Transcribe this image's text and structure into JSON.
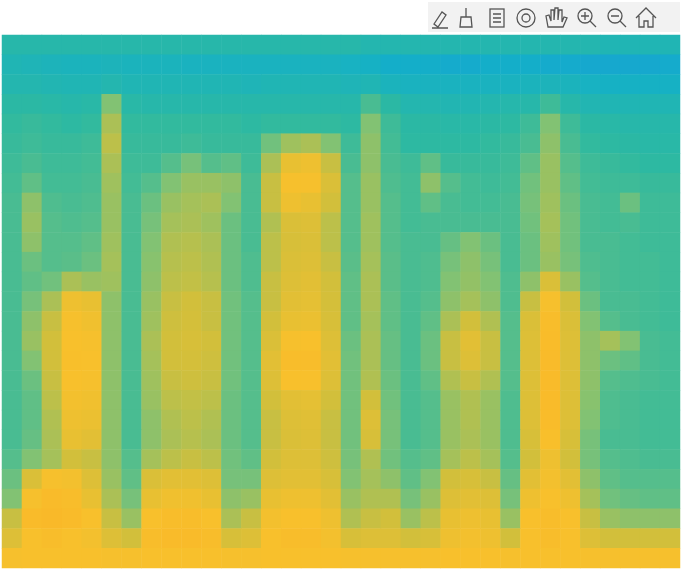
{
  "chart_data": {
    "type": "heatmap",
    "tick_labels": false,
    "clim": [
      0,
      10
    ],
    "cells": [
      [
        4,
        4,
        4,
        4,
        4,
        4,
        4,
        4,
        4,
        4,
        4,
        4,
        4,
        4,
        4,
        4,
        4,
        4,
        3.8,
        3.8,
        3.8,
        3.8,
        3.8,
        3.8,
        3.8,
        3.8,
        3.8,
        3.8,
        3.8,
        3.8,
        3.6,
        3.6,
        3.6,
        3.6
      ],
      [
        3.6,
        3.5,
        3.4,
        3.3,
        3.3,
        3.4,
        3.3,
        3.3,
        3.3,
        3.2,
        3.2,
        3.2,
        3.2,
        3.2,
        3.2,
        3.2,
        3.2,
        3.1,
        3,
        2.8,
        2.8,
        2.8,
        2.7,
        2.7,
        2.8,
        2.8,
        2.8,
        2.7,
        2.7,
        2.6,
        2.6,
        2.6,
        2.6,
        2.7
      ],
      [
        3.8,
        3.8,
        3.7,
        3.6,
        3.6,
        3.8,
        3.6,
        3.6,
        3.6,
        3.6,
        3.6,
        3.6,
        3.5,
        3.6,
        3.6,
        3.6,
        3.6,
        3.5,
        3.6,
        3.3,
        3.2,
        3.2,
        3.2,
        3.2,
        3.2,
        3.2,
        3.3,
        3.4,
        3.3,
        3.1,
        3,
        3,
        3,
        3
      ],
      [
        4.2,
        4.2,
        4.1,
        4,
        4.1,
        5.8,
        4.1,
        4,
        4,
        4,
        4,
        4,
        4,
        4,
        4,
        4,
        4,
        4,
        4.8,
        4.2,
        3.8,
        3.8,
        3.7,
        3.7,
        3.8,
        3.9,
        4,
        4.6,
        4,
        3.7,
        3.6,
        3.6,
        3.6,
        3.6
      ],
      [
        4.4,
        4.5,
        4.4,
        4.3,
        4.4,
        6.5,
        4.4,
        4.4,
        4.4,
        4.4,
        4.4,
        4.4,
        4.3,
        4.4,
        4.4,
        4.4,
        4.4,
        4.3,
        5.8,
        4.6,
        4.2,
        4.2,
        4.1,
        4.1,
        4.2,
        4.3,
        4.6,
        5.8,
        4.6,
        4.2,
        4.1,
        4,
        4,
        4
      ],
      [
        4.5,
        4.6,
        4.5,
        4.5,
        4.6,
        6.8,
        4.5,
        4.5,
        4.5,
        4.6,
        4.5,
        4.5,
        4.5,
        5.5,
        6.3,
        6.5,
        5.8,
        4.6,
        6,
        4.7,
        4.3,
        4.3,
        4.3,
        4.3,
        4.4,
        4.5,
        4.8,
        6,
        4.8,
        4.4,
        4.3,
        4.2,
        4.1,
        4.1
      ],
      [
        4.6,
        4.8,
        4.6,
        4.6,
        4.7,
        6.5,
        4.6,
        4.6,
        5,
        5.6,
        5,
        5.2,
        4.6,
        6.5,
        8,
        8.2,
        7,
        4.8,
        6,
        4.8,
        4.6,
        5.2,
        4.5,
        4.5,
        4.5,
        4.6,
        5.2,
        6.2,
        5,
        4.6,
        4.5,
        4.4,
        4.3,
        4.3
      ],
      [
        4.7,
        5.2,
        4.7,
        4.7,
        4.8,
        6.3,
        4.7,
        5,
        5.8,
        6.2,
        6.2,
        6,
        4.8,
        7,
        8.5,
        8.5,
        7.5,
        5,
        6.2,
        4.9,
        4.7,
        6,
        5,
        4.7,
        4.6,
        4.7,
        5.5,
        6.2,
        5.2,
        4.7,
        4.6,
        4.6,
        4.5,
        4.5
      ],
      [
        4.8,
        6,
        4.9,
        4.8,
        4.9,
        6.2,
        4.8,
        5.4,
        6.2,
        6.4,
        6.5,
        5.8,
        4.8,
        7,
        8.2,
        8,
        7.2,
        5,
        6.2,
        5,
        4.7,
        5.2,
        4.8,
        4.7,
        4.7,
        4.8,
        5.6,
        6.3,
        5.4,
        4.8,
        4.7,
        5.4,
        4.6,
        4.6
      ],
      [
        4.8,
        6.2,
        5,
        4.9,
        5,
        6.2,
        4.8,
        5.6,
        6.4,
        6.5,
        6.3,
        5.4,
        4.8,
        6.6,
        7.5,
        7.6,
        6.8,
        5,
        6.3,
        5,
        4.7,
        4.8,
        4.8,
        4.8,
        4.8,
        4.8,
        5.5,
        6.4,
        5.5,
        4.8,
        4.7,
        4.8,
        4.6,
        4.6
      ],
      [
        4.8,
        6,
        5,
        5,
        5.2,
        6.3,
        4.8,
        5.8,
        6.6,
        6.7,
        6.5,
        5.4,
        4.8,
        6.8,
        7.4,
        7.5,
        6.8,
        5,
        6.3,
        5,
        4.8,
        4.8,
        5.3,
        5.8,
        5.4,
        4.8,
        5.4,
        6.3,
        5.5,
        4.8,
        4.8,
        4.7,
        4.6,
        4.6
      ],
      [
        4.8,
        5.4,
        5,
        5.1,
        5.4,
        6.4,
        4.8,
        5.9,
        6.7,
        6.8,
        6.6,
        5.4,
        4.9,
        6.8,
        7.5,
        7.6,
        7,
        5.1,
        6.4,
        5.1,
        4.8,
        4.9,
        5.6,
        6,
        5.6,
        4.8,
        5.4,
        6.2,
        5.6,
        4.9,
        4.8,
        4.7,
        4.7,
        4.6
      ],
      [
        4.8,
        5.2,
        5.5,
        6.5,
        6.2,
        6.3,
        4.8,
        6,
        6.8,
        6.9,
        6.7,
        5.4,
        4.9,
        7,
        7.6,
        7.8,
        7.2,
        5.2,
        6.5,
        5.1,
        4.8,
        4.9,
        5.8,
        6.1,
        5.8,
        4.9,
        6,
        7.5,
        6.2,
        5,
        4.8,
        4.7,
        4.7,
        4.6
      ],
      [
        4.8,
        5.6,
        6.5,
        8.2,
        8,
        6,
        4.8,
        6.2,
        7,
        7.2,
        7,
        5.5,
        5,
        7,
        7.8,
        7.9,
        7.3,
        5.2,
        6.5,
        5.2,
        4.8,
        5,
        6,
        6.4,
        6,
        4.9,
        7,
        8.5,
        7.2,
        5.4,
        4.8,
        4.8,
        4.7,
        4.6
      ],
      [
        4.8,
        6,
        7,
        8.5,
        8.3,
        6,
        4.8,
        6.3,
        7.1,
        7.3,
        7,
        5.5,
        5,
        7.2,
        8,
        8.1,
        7.4,
        5.2,
        6.4,
        5.2,
        4.8,
        5.2,
        6.5,
        7.2,
        6.6,
        5,
        7.5,
        8.8,
        7.5,
        5.8,
        5,
        4.8,
        4.7,
        4.6
      ],
      [
        4.8,
        6.2,
        7.2,
        8.6,
        8.5,
        6,
        4.8,
        6.5,
        7.2,
        7.4,
        7.2,
        5.5,
        5,
        7.5,
        8.5,
        8.6,
        7.6,
        5.4,
        6.5,
        5.3,
        4.8,
        5.4,
        7,
        7.8,
        7,
        5,
        7.6,
        8.9,
        7.6,
        6,
        6.4,
        5.8,
        4.8,
        4.7
      ],
      [
        4.8,
        5.8,
        7.2,
        8.7,
        8.6,
        6,
        4.8,
        6.4,
        7.2,
        7.3,
        7.1,
        5.5,
        5,
        7.8,
        8.8,
        8.8,
        7.8,
        5.5,
        6.5,
        5.3,
        4.8,
        5.4,
        7,
        7.6,
        7,
        5,
        7.6,
        9,
        7.6,
        6,
        5.4,
        5.2,
        4.8,
        4.7
      ],
      [
        4.8,
        5.4,
        7,
        8.6,
        8.5,
        6,
        4.8,
        6.3,
        7,
        7.1,
        7,
        5.5,
        5,
        7.6,
        8.6,
        8.6,
        7.6,
        5.5,
        6.6,
        5.4,
        4.8,
        5.2,
        6.6,
        7,
        6.6,
        5,
        7.6,
        9,
        7.6,
        6,
        5,
        4.9,
        4.8,
        4.7
      ],
      [
        4.8,
        5.2,
        6.8,
        8.4,
        8.3,
        6,
        4.8,
        6.2,
        6.8,
        6.9,
        6.8,
        5.4,
        5,
        7.2,
        7.8,
        7.9,
        7.2,
        5.5,
        7.2,
        5.5,
        4.8,
        5,
        6.2,
        6.6,
        6.2,
        4.9,
        7.6,
        9,
        7.6,
        5.9,
        4.9,
        4.8,
        4.7,
        4.7
      ],
      [
        4.8,
        5.2,
        6.6,
        8.2,
        8.1,
        6,
        4.8,
        6,
        6.6,
        6.8,
        6.6,
        5.4,
        5,
        7,
        7.6,
        7.7,
        7,
        5.5,
        7.6,
        5.6,
        4.8,
        5,
        6.2,
        6.6,
        6.2,
        4.9,
        7.6,
        8.9,
        7.6,
        5.8,
        4.9,
        4.8,
        4.7,
        4.7
      ],
      [
        4.8,
        5.3,
        6.5,
        8,
        7.8,
        6,
        4.8,
        6,
        6.5,
        6.7,
        6.5,
        5.4,
        5,
        7,
        7.5,
        7.6,
        7,
        5.5,
        7.4,
        5.6,
        4.8,
        5,
        6.2,
        6.5,
        6.2,
        4.9,
        7.4,
        8.7,
        7.4,
        5.6,
        4.8,
        4.8,
        4.7,
        4.7
      ],
      [
        5,
        5.8,
        6.4,
        7.2,
        7,
        6,
        5,
        6.4,
        6.8,
        7,
        6.8,
        5.5,
        5.2,
        7.2,
        7.6,
        7.6,
        7.1,
        5.6,
        6.6,
        5.5,
        5,
        5.2,
        6.4,
        6.8,
        6.4,
        5,
        7.2,
        8.2,
        7.2,
        5.6,
        5,
        4.9,
        4.8,
        4.8
      ],
      [
        5.4,
        7.5,
        8.5,
        8.4,
        7.6,
        6.2,
        5.2,
        7.5,
        7.8,
        7.8,
        7.6,
        5.6,
        5.6,
        7.6,
        7.8,
        7.8,
        7.4,
        5.8,
        6.4,
        6,
        5.2,
        5.8,
        7.2,
        7.4,
        7,
        5.3,
        7.8,
        8.4,
        7.8,
        6,
        5.2,
        5,
        5,
        5
      ],
      [
        5.8,
        8.5,
        9,
        8.8,
        8,
        6.5,
        5.6,
        8,
        8.3,
        8.3,
        8,
        6,
        6.2,
        8,
        8.2,
        8.2,
        7.8,
        6.2,
        6.6,
        6.6,
        5.6,
        6.2,
        7.6,
        7.8,
        7.6,
        5.6,
        8.2,
        8.6,
        8.2,
        6.4,
        5.5,
        5.3,
        5.2,
        5.2
      ],
      [
        7,
        9,
        9.2,
        9,
        8.6,
        7,
        6.2,
        8.6,
        8.8,
        8.8,
        8.6,
        6.5,
        7,
        8.4,
        8.6,
        8.6,
        8.2,
        6.6,
        7,
        7.2,
        6.2,
        6.8,
        8,
        8.2,
        8,
        6.2,
        8.6,
        8.8,
        8.6,
        7,
        6.2,
        6,
        6,
        6
      ],
      [
        7.6,
        8.6,
        8.8,
        8.6,
        8.4,
        7.6,
        7.2,
        8.8,
        9,
        9,
        8.8,
        7.4,
        7.6,
        8.6,
        8.8,
        8.8,
        8.4,
        7.4,
        7.6,
        7.6,
        7.2,
        7.4,
        8.2,
        8.4,
        8.2,
        7.2,
        8.6,
        8.8,
        8.6,
        7.6,
        7.2,
        7.2,
        7.2,
        7.2
      ],
      [
        8.5,
        8.6,
        8.6,
        8.6,
        8.6,
        8.5,
        8.5,
        8.6,
        8.6,
        8.6,
        8.6,
        8.5,
        8.5,
        8.6,
        8.6,
        8.6,
        8.6,
        8.5,
        8.5,
        8.5,
        8.5,
        8.5,
        8.6,
        8.6,
        8.6,
        8.5,
        8.6,
        8.6,
        8.6,
        8.5,
        8.5,
        8.5,
        8.5,
        8.5
      ]
    ]
  }
}
